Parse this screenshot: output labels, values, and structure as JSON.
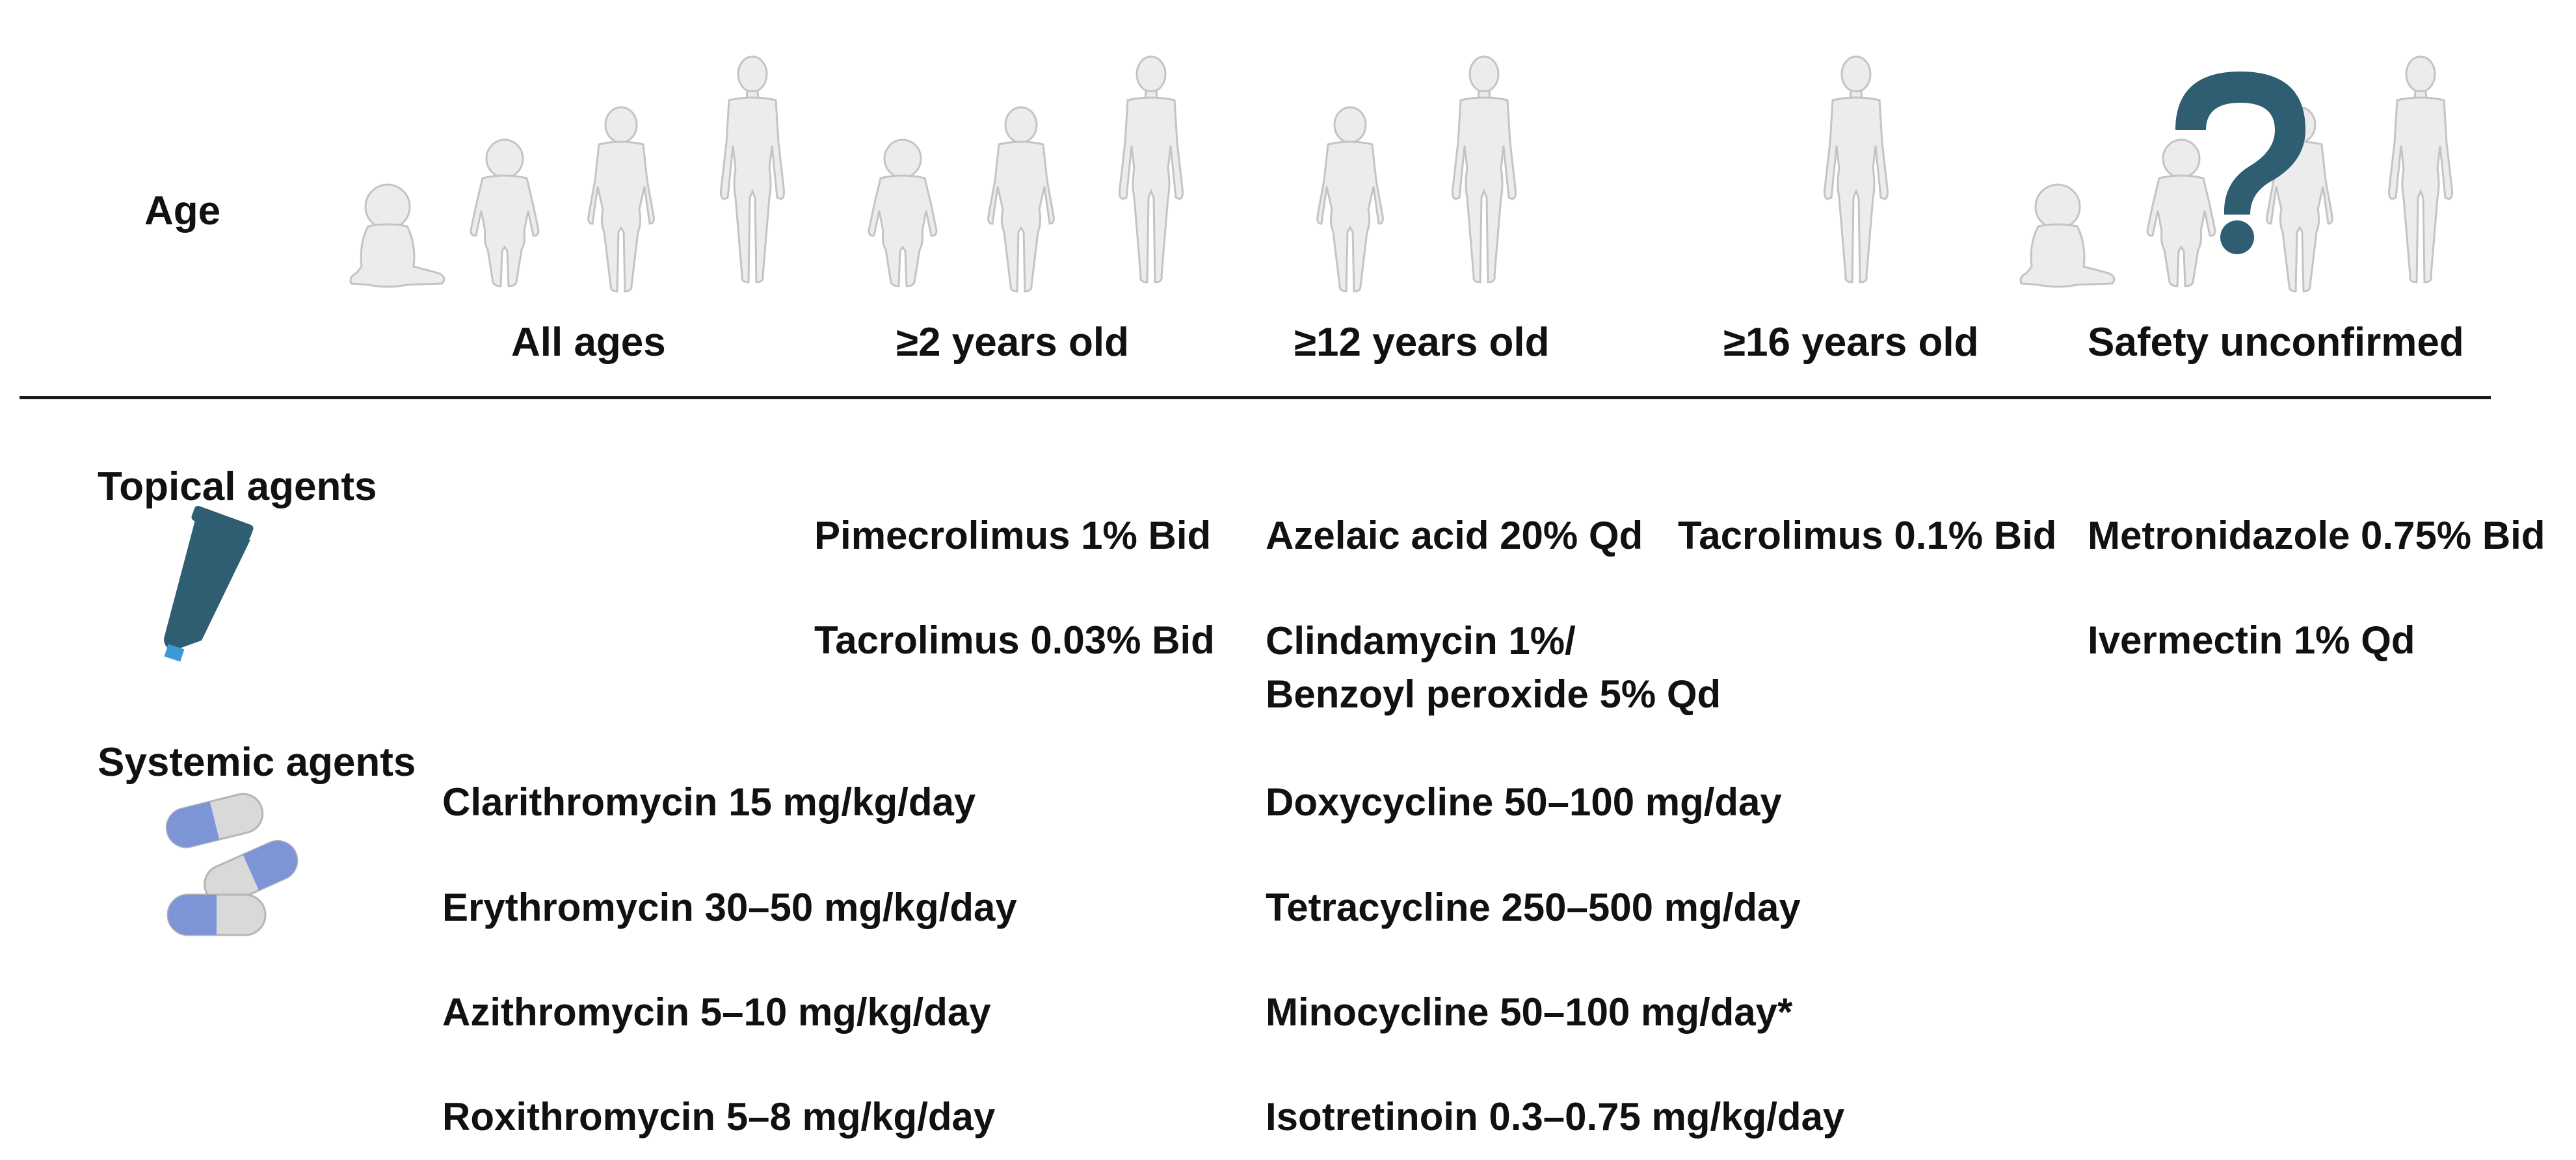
{
  "header": {
    "age_label": "Age",
    "groups": [
      "All ages",
      "≥2 years old",
      "≥12 years old",
      "≥16 years old",
      "Safety unconfirmed"
    ]
  },
  "sections": {
    "topical": {
      "title": "Topical agents",
      "icon": "ointment-tube-icon",
      "items": [
        {
          "text": "Pimecrolimus 1% Bid",
          "group": "≥2 years old"
        },
        {
          "text": "Tacrolimus 0.03% Bid",
          "group": "≥2 years old"
        },
        {
          "text": "Azelaic acid 20% Qd",
          "group": "≥12 years old"
        },
        {
          "text": "Clindamycin 1%/\nBenzoyl peroxide 5% Qd",
          "group": "≥12 years old"
        },
        {
          "text": "Tacrolimus 0.1% Bid",
          "group": "≥16 years old"
        },
        {
          "text": "Metronidazole 0.75% Bid",
          "group": "Safety unconfirmed"
        },
        {
          "text": "Ivermectin 1% Qd",
          "group": "Safety unconfirmed"
        }
      ]
    },
    "systemic": {
      "title": "Systemic agents",
      "icon": "capsules-icon",
      "items": [
        {
          "text": "Clarithromycin 15 mg/kg/day",
          "group": "All ages"
        },
        {
          "text": "Erythromycin 30–50 mg/kg/day",
          "group": "All ages"
        },
        {
          "text": "Azithromycin 5–10 mg/kg/day",
          "group": "All ages"
        },
        {
          "text": "Roxithromycin 5–8 mg/kg/day",
          "group": "All ages"
        },
        {
          "text": "Doxycycline 50–100 mg/day",
          "group": "≥12 years old"
        },
        {
          "text": "Tetracycline 250–500 mg/day",
          "group": "≥12 years old"
        },
        {
          "text": "Minocycline 50–100 mg/day*",
          "group": "≥12 years old"
        },
        {
          "text": "Isotretinoin 0.3–0.75 mg/kg/day",
          "group": "≥12 years old"
        }
      ]
    }
  },
  "colors": {
    "figure_fill": "#ececec",
    "figure_stroke": "#c4c4c4",
    "tube": "#2f5d72",
    "tube_tip": "#3a9ad6",
    "question_mark": "#2f5d72",
    "capsule_blue": "#7d95d6",
    "capsule_grey": "#d9d9d9"
  }
}
